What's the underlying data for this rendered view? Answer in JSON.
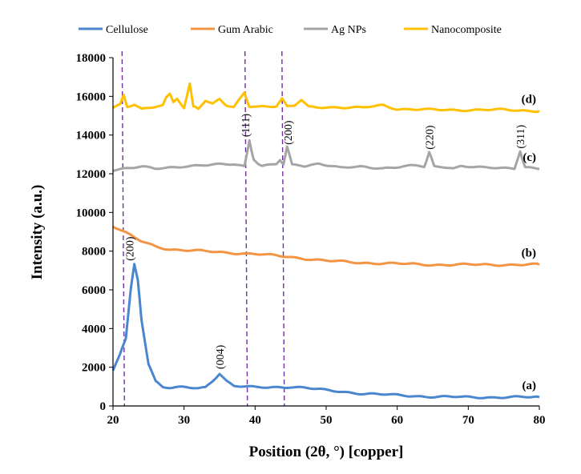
{
  "chart_data": {
    "type": "line",
    "title": "",
    "xlabel": "Position (2θ, °) [copper]",
    "ylabel": "Intensity (a.u.)",
    "xlim": [
      20,
      80
    ],
    "ylim": [
      0,
      18000
    ],
    "xticks": [
      20,
      30,
      40,
      50,
      60,
      70,
      80
    ],
    "yticks": [
      0,
      2000,
      4000,
      6000,
      8000,
      10000,
      12000,
      14000,
      16000,
      18000
    ],
    "grid": false,
    "legend_position": "top",
    "series": [
      {
        "name": "Cellulose",
        "color": "#4a86d0",
        "curve_label": "(a)",
        "x": [
          20,
          21,
          21.8,
          22.5,
          23,
          23.5,
          24,
          25,
          26,
          27,
          28,
          30,
          32,
          33,
          34,
          35,
          36,
          37,
          40,
          42,
          45,
          47,
          50,
          55,
          60,
          65,
          70,
          75,
          80
        ],
        "y": [
          1800,
          2700,
          3500,
          6000,
          7300,
          6500,
          4500,
          2200,
          1300,
          1000,
          950,
          950,
          900,
          950,
          1300,
          1700,
          1300,
          1050,
          950,
          950,
          1000,
          950,
          800,
          650,
          550,
          480,
          450,
          450,
          450
        ]
      },
      {
        "name": "Gum Arabic",
        "color": "#f39443",
        "curve_label": "(b)",
        "x": [
          20,
          22,
          24,
          26,
          28,
          30,
          35,
          40,
          45,
          50,
          55,
          60,
          65,
          70,
          75,
          80
        ],
        "y": [
          9300,
          8900,
          8500,
          8250,
          8100,
          8050,
          7950,
          7850,
          7700,
          7500,
          7400,
          7350,
          7300,
          7300,
          7300,
          7300
        ]
      },
      {
        "name": "Ag NPs",
        "color": "#a5a5a5",
        "curve_label": "(c)",
        "x": [
          20,
          22,
          24,
          26,
          30,
          34,
          37,
          38.5,
          39.2,
          39.8,
          41,
          43,
          43.5,
          44,
          44.5,
          45.2,
          47,
          49,
          52,
          55,
          58,
          62,
          63.8,
          64.5,
          65.2,
          68,
          69,
          72,
          76.5,
          77.3,
          78,
          80
        ],
        "y": [
          12200,
          12300,
          12350,
          12250,
          12400,
          12450,
          12500,
          12400,
          13750,
          12700,
          12400,
          12500,
          12700,
          12450,
          13350,
          12500,
          12400,
          12550,
          12300,
          12350,
          12300,
          12400,
          12350,
          13100,
          12400,
          12300,
          12400,
          12300,
          12300,
          13150,
          12350,
          12250
        ]
      },
      {
        "name": "Nanocomposite",
        "color": "#ffc000",
        "curve_label": "(d)",
        "x": [
          20,
          21,
          21.5,
          22,
          23,
          24,
          27,
          27.5,
          28,
          28.5,
          29,
          30,
          30.8,
          31.3,
          32,
          33,
          34,
          35,
          36,
          37,
          38.5,
          39.2,
          41,
          43,
          43.8,
          44.5,
          45.5,
          46.5,
          47.5,
          50,
          55,
          58,
          60,
          65,
          70,
          75,
          80
        ],
        "y": [
          15400,
          15600,
          16100,
          15500,
          15600,
          15350,
          15500,
          15900,
          16100,
          15700,
          15900,
          15400,
          16700,
          15500,
          15400,
          15800,
          15600,
          15850,
          15500,
          15400,
          16200,
          15400,
          15500,
          15500,
          15900,
          15450,
          15500,
          15800,
          15450,
          15450,
          15400,
          15550,
          15350,
          15300,
          15300,
          15300,
          15250
        ]
      }
    ],
    "reference_lines": [
      21.5,
      38.8,
      44.0
    ],
    "reference_line_color": "#7030a0",
    "annotations": [
      {
        "text": "(200)",
        "x": 22.3,
        "y": 7500
      },
      {
        "text": "(004)",
        "x": 35,
        "y": 1900
      },
      {
        "text": "(111)",
        "x": 38.6,
        "y": 13900
      },
      {
        "text": "(200)",
        "x": 44.6,
        "y": 13500
      },
      {
        "text": "(220)",
        "x": 64.5,
        "y": 13250
      },
      {
        "text": "(311)",
        "x": 77.3,
        "y": 13300
      }
    ]
  }
}
